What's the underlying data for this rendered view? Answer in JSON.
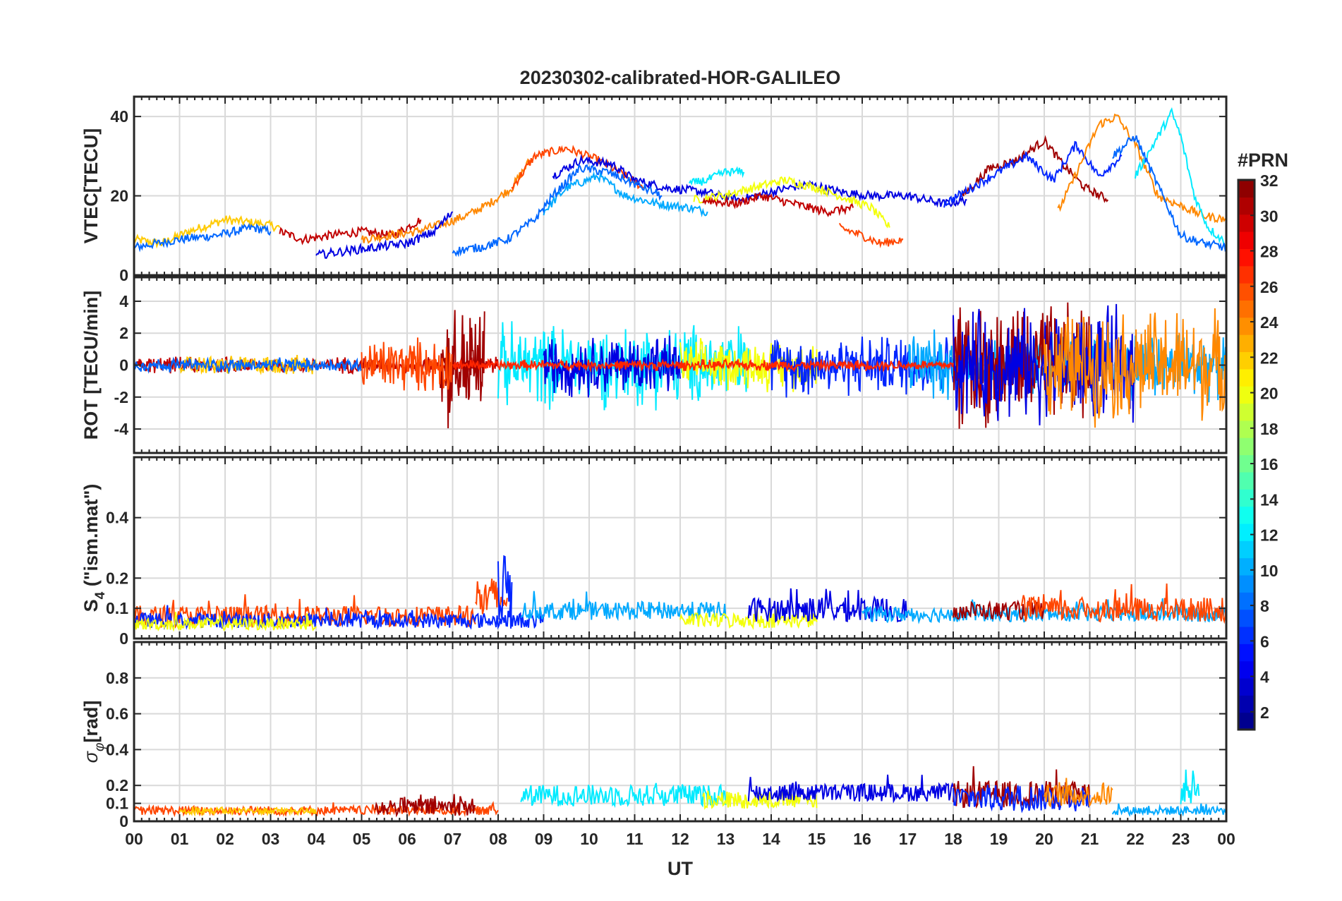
{
  "chart_data": {
    "type": "line",
    "title": "20230302-calibrated-HOR-GALILEO",
    "xlabel": "UT",
    "x_tick_labels": [
      "00",
      "01",
      "02",
      "03",
      "04",
      "05",
      "06",
      "07",
      "08",
      "09",
      "10",
      "11",
      "12",
      "13",
      "14",
      "15",
      "16",
      "17",
      "18",
      "19",
      "20",
      "21",
      "22",
      "23",
      "00"
    ],
    "xlim_hours": [
      0,
      24
    ],
    "grid": true,
    "colormap": "jet",
    "colorbar": {
      "title": "#PRN",
      "range": [
        1,
        32
      ],
      "tick_labels": [
        "2",
        "4",
        "6",
        "8",
        "10",
        "12",
        "14",
        "16",
        "18",
        "20",
        "22",
        "24",
        "26",
        "28",
        "30",
        "32"
      ],
      "placement": "right"
    },
    "panels": [
      {
        "id": "vtec",
        "ylabel": "VTEC[TECU]",
        "ylim": [
          0,
          45
        ],
        "yticks": [
          0,
          20,
          40
        ],
        "ytick_labels": [
          "0",
          "20",
          "40"
        ],
        "series": [
          {
            "prn": 22,
            "x": [
              0,
              0.6,
              1.2,
              2.0,
              2.8,
              3.2
            ],
            "y": [
              9,
              8,
              11,
              14,
              13,
              12
            ]
          },
          {
            "prn": 8,
            "x": [
              0,
              0.5,
              1.0,
              1.8,
              2.6,
              3.0
            ],
            "y": [
              7,
              8,
              9,
              10,
              12,
              11
            ]
          },
          {
            "prn": 30,
            "x": [
              3.2,
              3.7,
              4.3,
              5.0,
              5.7,
              6.3
            ],
            "y": [
              11,
              9,
              10,
              11,
              10,
              14
            ]
          },
          {
            "prn": 24,
            "x": [
              5.0,
              5.6,
              6.2,
              6.8,
              7.3,
              7.8,
              8.3,
              8.7
            ],
            "y": [
              9,
              10,
              11,
              13,
              15,
              18,
              22,
              29
            ]
          },
          {
            "prn": 26,
            "x": [
              8.3,
              8.8,
              9.5,
              10.2,
              10.8,
              11.2
            ],
            "y": [
              22,
              30,
              32,
              29,
              25,
              22
            ]
          },
          {
            "prn": 10,
            "x": [
              9.0,
              9.5,
              10.2,
              10.8,
              11.5,
              12.2,
              12.6
            ],
            "y": [
              16,
              22,
              25,
              20,
              18,
              17,
              16
            ]
          },
          {
            "prn": 4,
            "x": [
              9.2,
              9.8,
              10.5,
              11.0,
              11.7,
              12.5,
              13.3,
              14.0,
              14.8,
              15.5,
              16.2,
              17.0,
              17.8,
              18.3
            ],
            "y": [
              25,
              29,
              28,
              24,
              22,
              21,
              19,
              21,
              23,
              21,
              20,
              20,
              18,
              19
            ]
          },
          {
            "prn": 20,
            "x": [
              12.3,
              12.9,
              13.6,
              14.3,
              15.0,
              15.5,
              16.2,
              16.6
            ],
            "y": [
              19,
              20,
              22,
              24,
              22,
              20,
              17,
              12
            ]
          },
          {
            "prn": 30,
            "x": [
              12.5,
              13.2,
              13.8,
              14.5,
              15.2,
              15.8
            ],
            "y": [
              19,
              18,
              20,
              18,
              16,
              17
            ]
          },
          {
            "prn": 26,
            "x": [
              15.5,
              16.0,
              16.4,
              16.9
            ],
            "y": [
              12,
              10,
              8,
              9
            ]
          },
          {
            "prn": 31,
            "x": [
              18.2,
              18.8,
              19.4,
              20.0,
              20.4,
              20.9,
              21.4
            ],
            "y": [
              20,
              27,
              29,
              34,
              28,
              22,
              19
            ]
          },
          {
            "prn": 6,
            "x": [
              17.8,
              18.4,
              19.0,
              19.6,
              20.2,
              20.7,
              21.2,
              21.7
            ],
            "y": [
              18,
              22,
              26,
              30,
              24,
              33,
              25,
              30
            ]
          },
          {
            "prn": 24,
            "x": [
              20.3,
              20.8,
              21.2,
              21.6,
              22.0,
              22.5,
              22.9,
              23.5,
              24.0
            ],
            "y": [
              16,
              28,
              38,
              40,
              33,
              20,
              18,
              15,
              14
            ]
          },
          {
            "prn": 12,
            "x": [
              22.0,
              22.4,
              22.8,
              23.0,
              23.3,
              23.6,
              24.0
            ],
            "y": [
              25,
              33,
              41,
              35,
              20,
              12,
              8
            ]
          },
          {
            "prn": 8,
            "x": [
              21.5,
              22.0,
              22.6,
              23.0,
              23.5,
              24.0
            ],
            "y": [
              30,
              35,
              20,
              10,
              8,
              7
            ]
          },
          {
            "prn": 4,
            "x": [
              4.0,
              4.6,
              5.3,
              6.0,
              6.6,
              7.0
            ],
            "y": [
              5,
              6,
              7,
              8,
              11,
              16
            ]
          },
          {
            "prn": 8,
            "x": [
              7.0,
              7.6,
              8.2,
              8.8,
              9.2,
              9.8,
              10.4,
              11.0,
              11.6
            ],
            "y": [
              6,
              7,
              9,
              14,
              20,
              27,
              26,
              23,
              20
            ]
          },
          {
            "prn": 12,
            "x": [
              12.2,
              12.6,
              13.0,
              13.4
            ],
            "y": [
              23,
              24,
              26,
              26
            ]
          }
        ]
      },
      {
        "id": "rot",
        "ylabel": "ROT [TECU/min]",
        "ylim": [
          -5.5,
          5.5
        ],
        "yticks": [
          -4,
          -2,
          0,
          2,
          4
        ],
        "ytick_labels": [
          "-4",
          "-2",
          "0",
          "2",
          "4"
        ],
        "series": [
          {
            "prn": 30,
            "hours": [
              0,
              8
            ],
            "amplitude": 0.6
          },
          {
            "prn": 22,
            "hours": [
              1,
              4
            ],
            "amplitude": 0.7
          },
          {
            "prn": 8,
            "hours": [
              0,
              5
            ],
            "amplitude": 0.5
          },
          {
            "prn": 31,
            "hours": [
              6.7,
              7.7
            ],
            "amplitude": 4.5
          },
          {
            "prn": 26,
            "hours": [
              5.0,
              7.0
            ],
            "amplitude": 2.0
          },
          {
            "prn": 12,
            "hours": [
              8,
              13.5
            ],
            "amplitude": 3.0
          },
          {
            "prn": 4,
            "hours": [
              9,
              12
            ],
            "amplitude": 2.2
          },
          {
            "prn": 20,
            "hours": [
              12,
              15
            ],
            "amplitude": 1.8
          },
          {
            "prn": 6,
            "hours": [
              14,
              18
            ],
            "amplitude": 2.2
          },
          {
            "prn": 10,
            "hours": [
              17,
              24
            ],
            "amplitude": 2.5
          },
          {
            "prn": 31,
            "hours": [
              18,
              21
            ],
            "amplitude": 4.5
          },
          {
            "prn": 4,
            "hours": [
              18,
              22
            ],
            "amplitude": 4.0
          },
          {
            "prn": 24,
            "hours": [
              20,
              24
            ],
            "amplitude": 4.0
          },
          {
            "prn": 27,
            "hours": [
              7,
              18
            ],
            "amplitude": 0.4
          }
        ]
      },
      {
        "id": "s4",
        "ylabel": "S4 (\"ism.mat\")",
        "ylim": [
          0,
          0.6
        ],
        "yticks": [
          0,
          0.1,
          0.2,
          0.4
        ],
        "ytick_labels": [
          "0",
          "0.1",
          "0.2",
          "0.4"
        ],
        "series": [
          {
            "prn": 26,
            "hours": [
              0,
              7.5
            ],
            "base": 0.06,
            "amplitude": 0.07
          },
          {
            "prn": 6,
            "hours": [
              0,
              9
            ],
            "base": 0.05,
            "amplitude": 0.05
          },
          {
            "prn": 20,
            "hours": [
              0,
              4
            ],
            "base": 0.04,
            "amplitude": 0.04
          },
          {
            "prn": 26,
            "hours": [
              7.5,
              8.2
            ],
            "base": 0.1,
            "amplitude": 0.15
          },
          {
            "prn": 6,
            "hours": [
              8,
              8.3
            ],
            "base": 0.1,
            "amplitude": 0.25
          },
          {
            "prn": 10,
            "hours": [
              8.5,
              13
            ],
            "base": 0.08,
            "amplitude": 0.06
          },
          {
            "prn": 20,
            "hours": [
              12,
              15
            ],
            "base": 0.05,
            "amplitude": 0.05
          },
          {
            "prn": 4,
            "hours": [
              13.5,
              17
            ],
            "base": 0.08,
            "amplitude": 0.08
          },
          {
            "prn": 10,
            "hours": [
              16,
              24
            ],
            "base": 0.07,
            "amplitude": 0.05
          },
          {
            "prn": 31,
            "hours": [
              18,
              20
            ],
            "base": 0.08,
            "amplitude": 0.06
          },
          {
            "prn": 26,
            "hours": [
              19.5,
              24
            ],
            "base": 0.08,
            "amplitude": 0.08
          }
        ]
      },
      {
        "id": "sigphi",
        "ylabel": "σφ[rad]",
        "ylim": [
          0,
          1.0
        ],
        "yticks": [
          0,
          0.1,
          0.2,
          0.4,
          0.6,
          0.8
        ],
        "ytick_labels": [
          "0",
          "0.1",
          "0.2",
          "0.4",
          "0.6",
          "0.8"
        ],
        "series": [
          {
            "prn": 26,
            "hours": [
              0,
              8
            ],
            "base": 0.05,
            "amplitude": 0.05
          },
          {
            "prn": 22,
            "hours": [
              1,
              4
            ],
            "base": 0.05,
            "amplitude": 0.04
          },
          {
            "prn": 31,
            "hours": [
              5.3,
              7.5
            ],
            "base": 0.06,
            "amplitude": 0.1
          },
          {
            "prn": 12,
            "hours": [
              8.5,
              13
            ],
            "base": 0.12,
            "amplitude": 0.12
          },
          {
            "prn": 20,
            "hours": [
              12.5,
              15
            ],
            "base": 0.1,
            "amplitude": 0.1
          },
          {
            "prn": 4,
            "hours": [
              13.5,
              18
            ],
            "base": 0.14,
            "amplitude": 0.1
          },
          {
            "prn": 31,
            "hours": [
              18,
              21
            ],
            "base": 0.12,
            "amplitude": 0.15
          },
          {
            "prn": 6,
            "hours": [
              18,
              21
            ],
            "base": 0.1,
            "amplitude": 0.15
          },
          {
            "prn": 24,
            "hours": [
              20,
              21.5
            ],
            "base": 0.12,
            "amplitude": 0.12
          },
          {
            "prn": 10,
            "hours": [
              21.5,
              24
            ],
            "base": 0.05,
            "amplitude": 0.05
          },
          {
            "prn": 12,
            "hours": [
              23,
              23.4
            ],
            "base": 0.15,
            "amplitude": 0.2
          }
        ]
      }
    ]
  }
}
